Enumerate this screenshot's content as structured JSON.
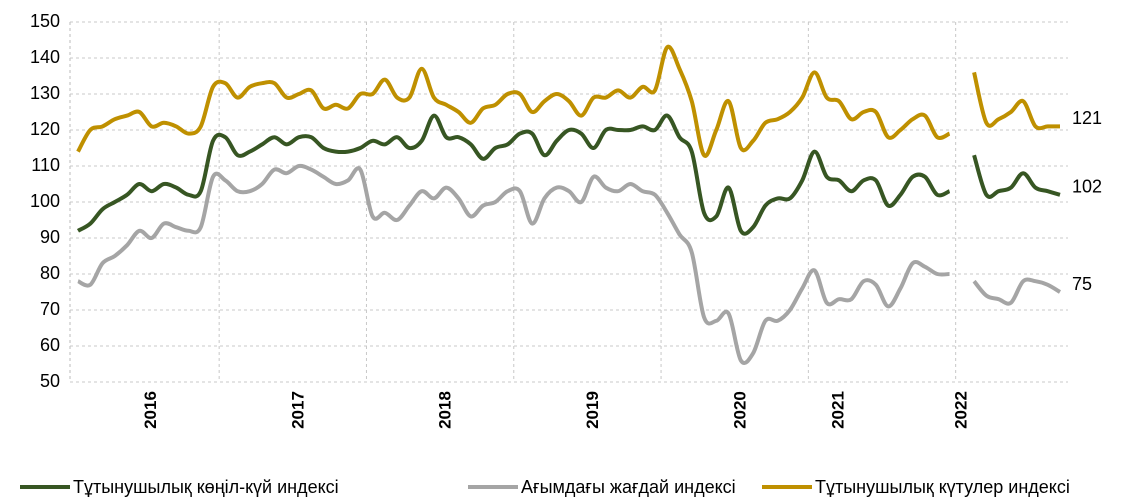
{
  "chart_data": {
    "type": "line",
    "categories": [
      null,
      null,
      null,
      null,
      null,
      null,
      "2016",
      null,
      null,
      null,
      null,
      null,
      null,
      null,
      null,
      null,
      null,
      null,
      "2017",
      null,
      null,
      null,
      null,
      null,
      null,
      null,
      null,
      null,
      null,
      null,
      "2018",
      null,
      null,
      null,
      null,
      null,
      null,
      null,
      null,
      null,
      null,
      null,
      "2019",
      null,
      null,
      null,
      null,
      null,
      null,
      null,
      null,
      null,
      null,
      null,
      "2020",
      null,
      null,
      null,
      null,
      null,
      null,
      null,
      "2021",
      null,
      null,
      null,
      null,
      null,
      null,
      null,
      null,
      null,
      "2022",
      null,
      null,
      null,
      null,
      null,
      null,
      null,
      null
    ],
    "series": [
      {
        "name": "Тұтынушылық көңіл-күй индексі",
        "color": "#375623",
        "values": [
          92,
          94,
          98,
          100,
          102,
          105,
          103,
          105,
          104,
          102,
          103,
          117,
          118,
          113,
          114,
          116,
          118,
          116,
          118,
          118,
          115,
          114,
          114,
          115,
          117,
          116,
          118,
          115,
          117,
          124,
          118,
          118,
          116,
          112,
          115,
          116,
          119,
          119,
          113,
          117,
          120,
          119,
          115,
          120,
          120,
          120,
          121,
          120,
          124,
          118,
          114,
          97,
          96,
          104,
          92,
          93,
          99,
          101,
          101,
          106,
          114,
          107,
          106,
          103,
          106,
          106,
          99,
          102,
          107,
          107,
          102,
          103,
          null,
          113,
          102,
          103,
          104,
          108,
          104,
          103,
          102
        ]
      },
      {
        "name": "Ағымдағы жағдай индексі",
        "color": "#a5a5a5",
        "values": [
          78,
          77,
          83,
          85,
          88,
          92,
          90,
          94,
          93,
          92,
          93,
          107,
          106,
          103,
          103,
          105,
          109,
          108,
          110,
          109,
          107,
          105,
          106,
          109,
          96,
          97,
          95,
          99,
          103,
          101,
          104,
          101,
          96,
          99,
          100,
          103,
          103,
          94,
          101,
          104,
          103,
          100,
          107,
          104,
          103,
          105,
          103,
          102,
          97,
          91,
          86,
          68,
          67,
          69,
          56,
          58,
          67,
          67,
          70,
          76,
          81,
          72,
          73,
          73,
          78,
          77,
          71,
          76,
          83,
          82,
          80,
          80,
          null,
          78,
          74,
          73,
          72,
          78,
          78,
          77,
          75
        ]
      },
      {
        "name": "Тұтынушылық күтулер индексі",
        "color": "#bf9000",
        "values": [
          114,
          120,
          121,
          123,
          124,
          125,
          121,
          122,
          121,
          119,
          121,
          132,
          133,
          129,
          132,
          133,
          133,
          129,
          130,
          131,
          126,
          127,
          126,
          130,
          130,
          134,
          129,
          129,
          137,
          129,
          127,
          125,
          122,
          126,
          127,
          130,
          130,
          125,
          128,
          130,
          128,
          124,
          129,
          129,
          131,
          129,
          132,
          131,
          143,
          137,
          128,
          113,
          120,
          128,
          115,
          117,
          122,
          123,
          125,
          129,
          136,
          129,
          128,
          123,
          125,
          125,
          118,
          120,
          123,
          124,
          118,
          119,
          null,
          136,
          122,
          123,
          125,
          128,
          121,
          121,
          121
        ]
      }
    ],
    "ylim": [
      50,
      150
    ],
    "yticks": [
      50,
      60,
      70,
      80,
      90,
      100,
      110,
      120,
      130,
      140,
      150
    ],
    "grid": true,
    "legend": "bottom"
  }
}
